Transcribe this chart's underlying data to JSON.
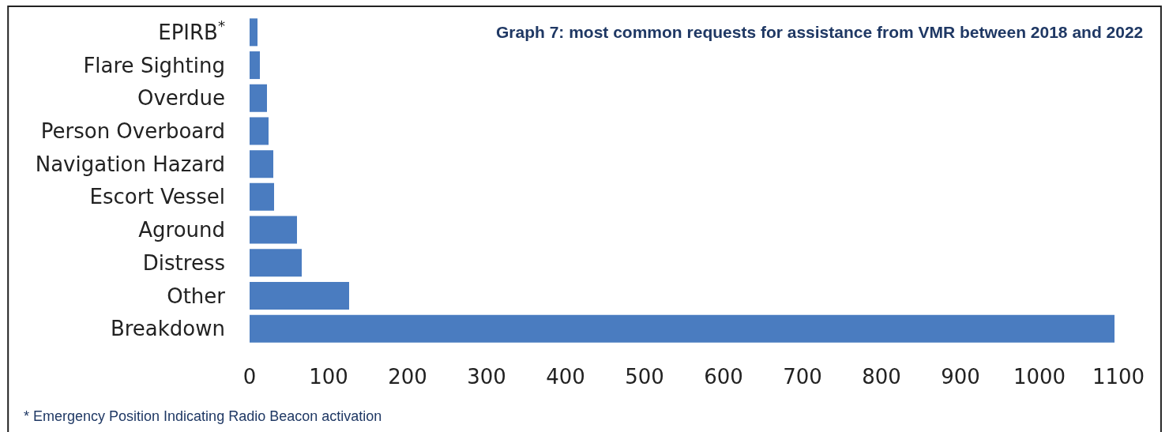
{
  "chart_data": {
    "type": "bar",
    "orientation": "horizontal",
    "title": "Graph 7: most common requests for assistance from VMR between 2018 and 2022",
    "categories": [
      "EPIRB$^{*}$",
      "Flare Sighting",
      "Overdue",
      "Person Overboard",
      "Navigation Hazard",
      "Escort Vessel",
      "Aground",
      "Distress",
      "Other",
      "Breakdown"
    ],
    "values": [
      10,
      13,
      22,
      24,
      30,
      31,
      60,
      66,
      126,
      1095
    ],
    "color": "#4a7cc0",
    "xlim": [
      0,
      1100
    ],
    "xticks": [
      0,
      100,
      200,
      300,
      400,
      500,
      600,
      700,
      800,
      900,
      1000,
      1100
    ],
    "grid": false,
    "annotations": [
      "* Emergency Position Indicating Radio Beacon activation"
    ]
  }
}
